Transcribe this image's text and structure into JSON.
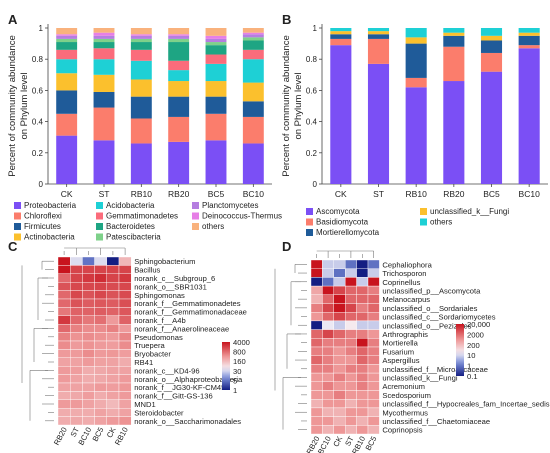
{
  "chart_data": [
    {
      "panel": "A",
      "type": "bar",
      "stacked": true,
      "ylabel": "Percent of community abundance on Phylum level",
      "ylim": [
        0,
        1
      ],
      "yticks": [
        "0",
        "0.2",
        "0.4",
        "0.6",
        "0.8",
        "1"
      ],
      "categories": [
        "CK",
        "ST",
        "RB10",
        "RB20",
        "BC5",
        "BC10"
      ],
      "legend_position": "bottom",
      "series": [
        {
          "name": "Proteobacteria",
          "color": "#7b4ff5",
          "values": [
            0.31,
            0.28,
            0.26,
            0.27,
            0.28,
            0.26
          ]
        },
        {
          "name": "Chloroflexi",
          "color": "#fb7d6c",
          "values": [
            0.14,
            0.21,
            0.16,
            0.16,
            0.17,
            0.17
          ]
        },
        {
          "name": "Firmicutes",
          "color": "#1f5b99",
          "values": [
            0.15,
            0.1,
            0.14,
            0.13,
            0.11,
            0.1
          ]
        },
        {
          "name": "Actinobacteria",
          "color": "#fbc02d",
          "values": [
            0.11,
            0.11,
            0.11,
            0.1,
            0.1,
            0.12
          ]
        },
        {
          "name": "Acidobacteria",
          "color": "#1ed0d5",
          "values": [
            0.09,
            0.1,
            0.12,
            0.07,
            0.11,
            0.15
          ]
        },
        {
          "name": "Gemmatimonadetes",
          "color": "#fb6c7b",
          "values": [
            0.06,
            0.07,
            0.07,
            0.06,
            0.06,
            0.06
          ]
        },
        {
          "name": "Bacteroidetes",
          "color": "#1ea583",
          "values": [
            0.05,
            0.04,
            0.05,
            0.12,
            0.06,
            0.06
          ]
        },
        {
          "name": "Patescibacteria",
          "color": "#7ed18a",
          "values": [
            0.02,
            0.02,
            0.02,
            0.02,
            0.02,
            0.02
          ]
        },
        {
          "name": "Planctomycetes",
          "color": "#b57ee0",
          "values": [
            0.02,
            0.02,
            0.02,
            0.02,
            0.02,
            0.02
          ]
        },
        {
          "name": "Deinococcus-Thermus",
          "color": "#e67fe6",
          "values": [
            0.01,
            0.02,
            0.01,
            0.01,
            0.02,
            0.01
          ]
        },
        {
          "name": "others",
          "color": "#f9b27d",
          "values": [
            0.04,
            0.03,
            0.04,
            0.04,
            0.05,
            0.03
          ]
        }
      ]
    },
    {
      "panel": "B",
      "type": "bar",
      "stacked": true,
      "ylabel": "Percent of community abundance on Phylum level",
      "ylim": [
        0,
        1
      ],
      "yticks": [
        "0",
        "0.2",
        "0.4",
        "0.6",
        "0.8",
        "1"
      ],
      "categories": [
        "CK",
        "ST",
        "RB10",
        "RB20",
        "BC5",
        "BC10"
      ],
      "legend_position": "bottom",
      "series": [
        {
          "name": "Ascomycota",
          "color": "#7b4ff5",
          "values": [
            0.89,
            0.77,
            0.62,
            0.66,
            0.72,
            0.87
          ]
        },
        {
          "name": "Basidiomycota",
          "color": "#fb7d6c",
          "values": [
            0.04,
            0.16,
            0.06,
            0.22,
            0.12,
            0.02
          ]
        },
        {
          "name": "Mortierellomycota",
          "color": "#1f5b99",
          "values": [
            0.03,
            0.03,
            0.22,
            0.07,
            0.08,
            0.06
          ]
        },
        {
          "name": "unclassified_k__Fungi",
          "color": "#fbc02d",
          "values": [
            0.02,
            0.02,
            0.04,
            0.02,
            0.03,
            0.02
          ]
        },
        {
          "name": "others",
          "color": "#1ed0d5",
          "values": [
            0.02,
            0.02,
            0.06,
            0.03,
            0.05,
            0.03
          ]
        }
      ]
    },
    {
      "panel": "C",
      "type": "heatmap",
      "columns": [
        "RB20",
        "ST",
        "BC10",
        "BC5",
        "CK",
        "RB10"
      ],
      "rows": [
        "Sphingobacterium",
        "Bacillus",
        "norank_c__Subgroup_6",
        "norank_o__SBR1031",
        "Sphingomonas",
        "norank_f__Gemmatimonadetes",
        "norank_f__Gemmatimonadaceae",
        "norank_f__A4b",
        "norank_f__Anaerolineaceae",
        "Pseudomonas",
        "Truepera",
        "Bryobacter",
        "RB41",
        "norank_c__KD4-96",
        "norank_o__Alphaproteobacteria",
        "norank_f__JG30-KF-CM45",
        "norank_f__Gitt-GS-136",
        "MND1",
        "Steroidobacter",
        "norank_o__Saccharimonadales"
      ],
      "colorbar_ticks": [
        "4000",
        "800",
        "160",
        "30",
        "5",
        "1"
      ],
      "values": [
        [
          4000,
          30,
          5,
          30,
          1,
          160
        ],
        [
          4000,
          1600,
          1600,
          1600,
          1600,
          1600
        ],
        [
          800,
          1600,
          2000,
          2500,
          1600,
          2000
        ],
        [
          1200,
          1500,
          1500,
          1600,
          1400,
          1500
        ],
        [
          800,
          1500,
          1200,
          1500,
          1200,
          1400
        ],
        [
          800,
          1200,
          1000,
          1100,
          1000,
          1300
        ],
        [
          600,
          900,
          900,
          1000,
          900,
          1100
        ],
        [
          2000,
          800,
          600,
          700,
          300,
          900
        ],
        [
          800,
          500,
          400,
          400,
          500,
          300
        ],
        [
          500,
          350,
          400,
          350,
          300,
          450
        ],
        [
          400,
          300,
          350,
          300,
          280,
          400
        ],
        [
          300,
          300,
          400,
          300,
          320,
          280
        ],
        [
          250,
          250,
          300,
          260,
          250,
          200
        ],
        [
          300,
          280,
          200,
          220,
          250,
          250
        ],
        [
          300,
          250,
          200,
          220,
          250,
          300
        ],
        [
          250,
          250,
          250,
          300,
          280,
          320
        ],
        [
          200,
          220,
          280,
          200,
          250,
          300
        ],
        [
          300,
          300,
          250,
          200,
          150,
          250
        ],
        [
          200,
          200,
          200,
          250,
          200,
          250
        ],
        [
          200,
          220,
          200,
          250,
          300,
          350
        ]
      ]
    },
    {
      "panel": "D",
      "type": "heatmap",
      "columns": [
        "RB20",
        "BC10",
        "CK",
        "ST",
        "RB10",
        "BC5"
      ],
      "rows": [
        "Cephaliophora",
        "Trichosporon",
        "Coprinellus",
        "unclassified_p__Ascomycota",
        "Melanocarpus",
        "unclassified_o__Sordariales",
        "unclassified_c__Sordariomycetes",
        "unclassified_o__Pezizales",
        "Arthrographis",
        "Mortierella",
        "Fusarium",
        "Aspergillus",
        "unclassified_f__Microascaceae",
        "unclassified_k__Fungi",
        "Acremonium",
        "Scedosporium",
        "unclassified_f__Hypocreales_fam_Incertae_sedis",
        "Mycothermus",
        "unclassified_f__Chaetomiaceae",
        "Coprinopsis"
      ],
      "colorbar_ticks": [
        "20,000",
        "2000",
        "200",
        "10",
        "1",
        "0.1"
      ],
      "values": [
        [
          20000,
          10,
          10,
          1,
          0.1,
          1
        ],
        [
          20000,
          10,
          1,
          10,
          0.1,
          10
        ],
        [
          0.1,
          1,
          10,
          20000,
          10,
          20000
        ],
        [
          300,
          20000,
          5000,
          2000,
          2000,
          1000
        ],
        [
          200,
          2000,
          20000,
          2000,
          2000,
          2000
        ],
        [
          1000,
          5000,
          20000,
          5000,
          1000,
          2000
        ],
        [
          500,
          2000,
          5000,
          2000,
          2000,
          1000
        ],
        [
          0.1,
          20,
          10,
          30,
          10,
          10
        ],
        [
          2000,
          5000,
          2000,
          1000,
          1000,
          500
        ],
        [
          2000,
          1000,
          1000,
          1000,
          20000,
          1000
        ],
        [
          1000,
          1000,
          500,
          1000,
          2000,
          1000
        ],
        [
          2000,
          1000,
          500,
          500,
          2000,
          1000
        ],
        [
          1000,
          1000,
          500,
          1000,
          1000,
          500
        ],
        [
          500,
          500,
          1000,
          500,
          1000,
          500
        ],
        [
          500,
          1000,
          500,
          500,
          1000,
          500
        ],
        [
          500,
          500,
          1000,
          500,
          500,
          500
        ],
        [
          200,
          500,
          500,
          200,
          500,
          500
        ],
        [
          500,
          200,
          200,
          500,
          500,
          200
        ],
        [
          500,
          500,
          200,
          500,
          200,
          500
        ],
        [
          500,
          200,
          500,
          200,
          500,
          200
        ]
      ]
    }
  ]
}
